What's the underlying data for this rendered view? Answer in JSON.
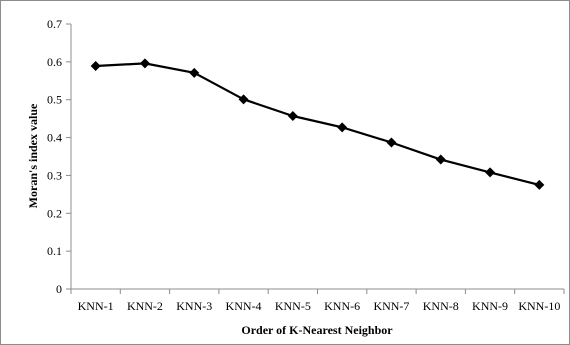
{
  "chart_data": {
    "type": "line",
    "title": "",
    "xlabel": "Order of K-Nearest Neighbor",
    "ylabel": "Moran's index value",
    "categories": [
      "KNN-1",
      "KNN-2",
      "KNN-3",
      "KNN-4",
      "KNN-5",
      "KNN-6",
      "KNN-7",
      "KNN-8",
      "KNN-9",
      "KNN-10"
    ],
    "series": [
      {
        "values": [
          0.589,
          0.596,
          0.571,
          0.501,
          0.457,
          0.427,
          0.387,
          0.342,
          0.308,
          0.275
        ],
        "color": "#000000",
        "marker": "diamond"
      }
    ],
    "ylim": [
      0,
      0.7
    ],
    "yticks": [
      0,
      0.1,
      0.2,
      0.3,
      0.4,
      0.5,
      0.6,
      0.7
    ],
    "ytick_labels": [
      "0",
      "0.1",
      "0.2",
      "0.3",
      "0.4",
      "0.5",
      "0.6",
      "0.7"
    ],
    "grid": false,
    "legend": "none"
  }
}
